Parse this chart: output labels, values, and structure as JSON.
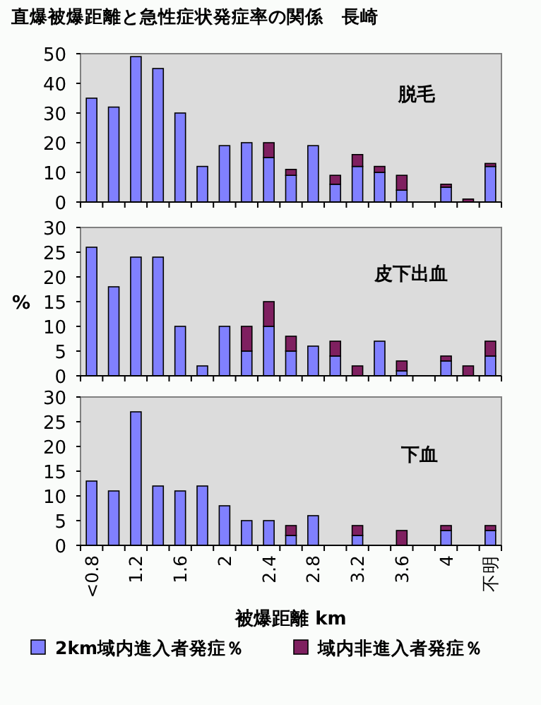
{
  "chart_data": [
    {
      "type": "bar",
      "stacked": true,
      "title": "直爆被爆距離と急性症状発症率の関係　長崎",
      "subtitle": "脱毛",
      "tick_labels": "y",
      "ylim": [
        0,
        50
      ],
      "yticks": [
        0,
        10,
        20,
        30,
        40,
        50
      ],
      "series": [
        {
          "color": "#8080ff",
          "values": [
            35,
            32,
            49,
            45,
            30,
            12,
            19,
            20,
            15,
            9,
            19,
            6,
            12,
            10,
            4,
            0,
            5,
            0,
            12
          ]
        },
        {
          "color": "#7f2060",
          "values": [
            0,
            0,
            0,
            0,
            0,
            0,
            0,
            0,
            5,
            2,
            0,
            3,
            4,
            2,
            5,
            0,
            1,
            1,
            1
          ]
        }
      ]
    },
    {
      "type": "bar",
      "stacked": true,
      "subtitle": "皮下出血",
      "ylabel": "%",
      "tick_labels": "y",
      "ylim": [
        0,
        30
      ],
      "yticks": [
        0,
        5,
        10,
        15,
        20,
        25,
        30
      ],
      "series": [
        {
          "color": "#8080ff",
          "values": [
            26,
            18,
            24,
            24,
            10,
            2,
            10,
            5,
            10,
            5,
            6,
            4,
            0,
            7,
            1,
            0,
            3,
            0,
            4
          ]
        },
        {
          "color": "#7f2060",
          "values": [
            0,
            0,
            0,
            0,
            0,
            0,
            0,
            5,
            5,
            3,
            0,
            3,
            2,
            0,
            2,
            0,
            1,
            2,
            3
          ]
        }
      ]
    },
    {
      "type": "bar",
      "stacked": true,
      "subtitle": "下血",
      "xlabel": "被爆距離 km",
      "legend": "bottom",
      "categories": [
        "<0.8",
        null,
        "1.2",
        null,
        "1.6",
        null,
        "2",
        null,
        "2.4",
        null,
        "2.8",
        null,
        "3.2",
        null,
        "3.6",
        null,
        "4",
        null,
        "不明"
      ],
      "ylim": [
        0,
        30
      ],
      "yticks": [
        0,
        5,
        10,
        15,
        20,
        25,
        30
      ],
      "series": [
        {
          "name": "2km域内進入者発症％",
          "color": "#8080ff",
          "values": [
            13,
            11,
            27,
            12,
            11,
            12,
            8,
            5,
            5,
            2,
            6,
            0,
            2,
            0,
            0,
            0,
            3,
            0,
            3
          ]
        },
        {
          "name": "域内非進入者発症％",
          "color": "#7f2060",
          "values": [
            0,
            0,
            0,
            0,
            0,
            0,
            0,
            0,
            0,
            2,
            0,
            0,
            2,
            0,
            3,
            0,
            1,
            0,
            1
          ]
        }
      ]
    }
  ]
}
